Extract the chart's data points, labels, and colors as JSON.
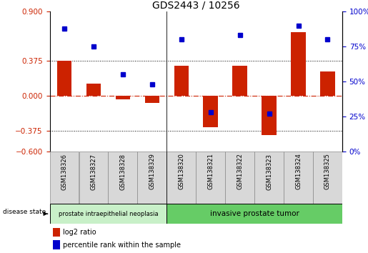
{
  "title": "GDS2443 / 10256",
  "samples": [
    "GSM138326",
    "GSM138327",
    "GSM138328",
    "GSM138329",
    "GSM138320",
    "GSM138321",
    "GSM138322",
    "GSM138323",
    "GSM138324",
    "GSM138325"
  ],
  "log2_ratio": [
    0.375,
    0.13,
    -0.04,
    -0.08,
    0.32,
    -0.34,
    0.32,
    -0.42,
    0.68,
    0.26
  ],
  "percentile_rank": [
    88,
    75,
    55,
    48,
    80,
    28,
    83,
    27,
    90,
    80
  ],
  "group1_label": "prostate intraepithelial neoplasia",
  "group1_count": 4,
  "group2_label": "invasive prostate tumor",
  "group2_count": 6,
  "disease_state_label": "disease state",
  "legend_log2": "log2 ratio",
  "legend_pct": "percentile rank within the sample",
  "ylim_left": [
    -0.6,
    0.9
  ],
  "ylim_right": [
    0,
    100
  ],
  "yticks_left": [
    -0.6,
    -0.375,
    0,
    0.375,
    0.9
  ],
  "yticks_right": [
    0,
    25,
    50,
    75,
    100
  ],
  "hline_dotted": [
    0.375,
    -0.375
  ],
  "bar_color": "#cc2200",
  "dot_color": "#0000cc",
  "hline_color": "#cc2200",
  "group1_color": "#c8f0c8",
  "group2_color": "#66cc66",
  "sample_box_color": "#d8d8d8",
  "background_color": "#ffffff"
}
